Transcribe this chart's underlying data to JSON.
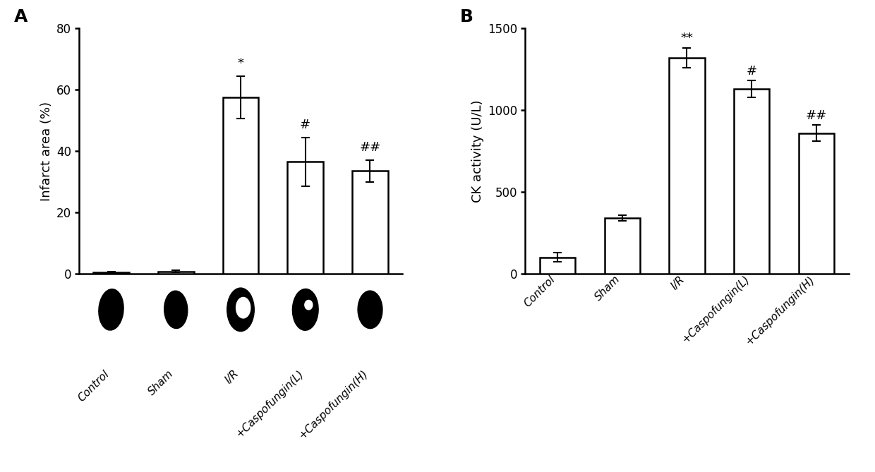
{
  "panel_A": {
    "label": "A",
    "categories": [
      "Control",
      "Sham",
      "I/R",
      "+Caspofungin(L)",
      "+Caspofungin(H)"
    ],
    "values": [
      0.5,
      0.8,
      57.5,
      36.5,
      33.5
    ],
    "errors": [
      0.3,
      0.4,
      7.0,
      8.0,
      3.5
    ],
    "ylabel": "Infarct area (%)",
    "ylim": [
      0,
      80
    ],
    "yticks": [
      0,
      20,
      40,
      60,
      80
    ],
    "significance": [
      "",
      "",
      "*",
      "#",
      "##"
    ],
    "bar_color": "#ffffff",
    "bar_edgecolor": "#000000",
    "bar_linewidth": 1.8,
    "error_color": "#000000",
    "error_linewidth": 1.5,
    "error_capsize": 4
  },
  "panel_B": {
    "label": "B",
    "categories": [
      "Control",
      "Sham",
      "I/R",
      "+Caspofungin(L)",
      "+Caspofungin(H)"
    ],
    "values": [
      100,
      340,
      1320,
      1130,
      860
    ],
    "errors": [
      28,
      18,
      60,
      50,
      48
    ],
    "ylabel": "CK activity (U/L)",
    "ylim": [
      0,
      1500
    ],
    "yticks": [
      0,
      500,
      1000,
      1500
    ],
    "significance": [
      "",
      "",
      "**",
      "#",
      "##"
    ],
    "bar_color": "#ffffff",
    "bar_edgecolor": "#000000",
    "bar_linewidth": 1.8,
    "error_color": "#000000",
    "error_linewidth": 1.5,
    "error_capsize": 4
  },
  "figure_bg": "#ffffff",
  "font_family": "Arial",
  "axis_linewidth": 1.8,
  "tick_labelsize": 12,
  "ylabel_fontsize": 13,
  "panel_label_fontsize": 18,
  "sig_fontsize": 13
}
